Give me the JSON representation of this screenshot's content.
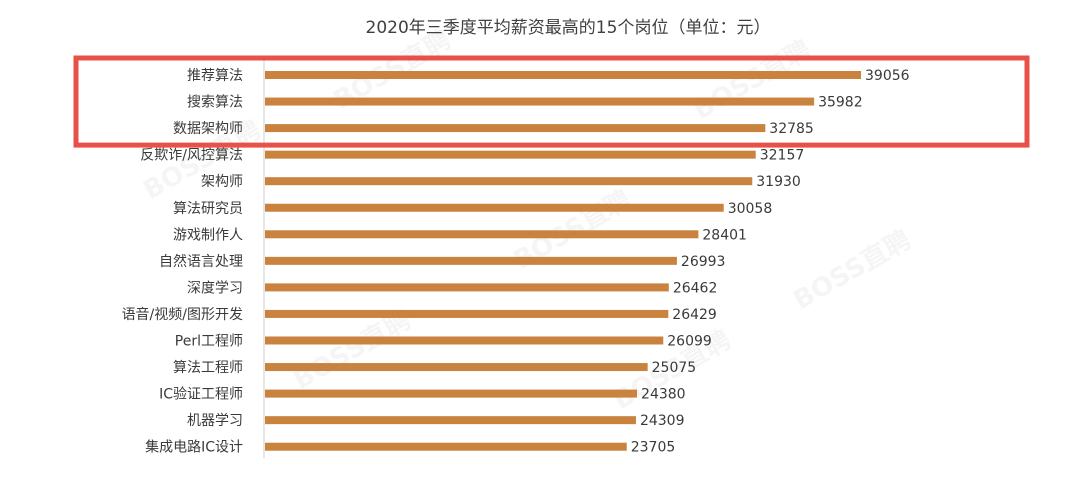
{
  "chart_data": {
    "type": "bar",
    "orientation": "horizontal",
    "title": "2020年三季度平均薪资最高的15个岗位（单位：元）",
    "categories": [
      "推荐算法",
      "搜索算法",
      "数据架构师",
      "反欺诈/风控算法",
      "架构师",
      "算法研究员",
      "游戏制作人",
      "自然语言处理",
      "深度学习",
      "语音/视频/图形开发",
      "Perl工程师",
      "算法工程师",
      "IC验证工程师",
      "机器学习",
      "集成电路IC设计"
    ],
    "values": [
      39056,
      35982,
      32785,
      32157,
      31930,
      30058,
      28401,
      26993,
      26462,
      26429,
      26099,
      25075,
      24380,
      24309,
      23705
    ],
    "xlim": [
      0,
      40000
    ],
    "grid": false,
    "legend": "none",
    "bar_color": "#c9833f",
    "highlight": {
      "categories": [
        "推荐算法",
        "搜索算法",
        "数据架构师"
      ],
      "color": "#e8504a"
    },
    "watermark": "BOSS直聘"
  }
}
